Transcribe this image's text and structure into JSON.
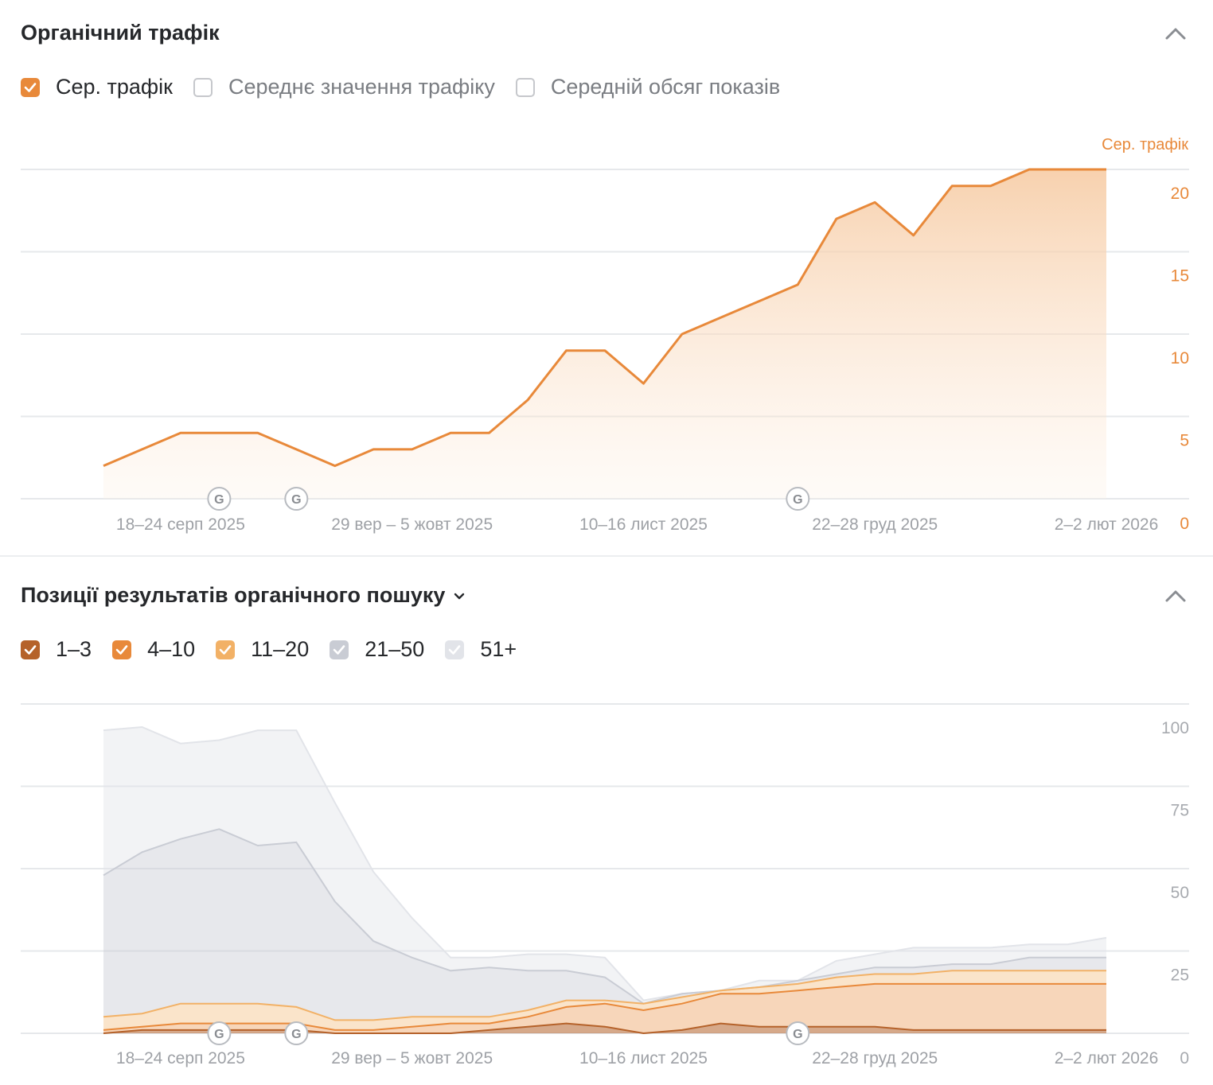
{
  "traffic_section": {
    "title": "Органічний трафік",
    "legend": [
      {
        "label": "Сер. трафік",
        "checked": true,
        "color": "#e8893a"
      },
      {
        "label": "Середнє значення трафіку",
        "checked": false
      },
      {
        "label": "Середній обсяг показів",
        "checked": false
      }
    ]
  },
  "positions_section": {
    "title": "Позиції результатів органічного пошуку",
    "legend": [
      {
        "label": "1–3",
        "checked": true,
        "color": "#b5622a"
      },
      {
        "label": "4–10",
        "checked": true,
        "color": "#e8893a"
      },
      {
        "label": "11–20",
        "checked": true,
        "color": "#f2b166"
      },
      {
        "label": "21–50",
        "checked": true,
        "color": "#c9ccd4"
      },
      {
        "label": "51+",
        "checked": true,
        "color": "#e2e4e9"
      }
    ]
  },
  "google_update_marker": "G",
  "chart_data": [
    {
      "type": "area",
      "y_axis_title": "Сер. трафік",
      "y_ticks": [
        "0",
        "5",
        "10",
        "15",
        "20"
      ],
      "ylim": [
        0,
        20
      ],
      "x_tick_labels": [
        "18–24 серп 2025",
        "29 вер – 5 жовт 2025",
        "10–16 лист 2025",
        "22–28 груд 2025",
        "2–2 лют 2026"
      ],
      "x_tick_index": [
        2,
        8,
        14,
        20,
        26
      ],
      "google_update_index": [
        3,
        5,
        18
      ],
      "grid": true,
      "series": [
        {
          "name": "Сер. трафік",
          "color": "#e8893a",
          "values": [
            2,
            3,
            4,
            4,
            4,
            3,
            2,
            3,
            3,
            4,
            4,
            6,
            9,
            9,
            7,
            10,
            11,
            12,
            13,
            17,
            18,
            16,
            19,
            19,
            20,
            20,
            20
          ]
        }
      ]
    },
    {
      "type": "area",
      "stacked": true,
      "y_ticks": [
        "0",
        "25",
        "50",
        "75",
        "100"
      ],
      "ylim": [
        0,
        100
      ],
      "x_tick_labels": [
        "18–24 серп 2025",
        "29 вер – 5 жовт 2025",
        "10–16 лист 2025",
        "22–28 груд 2025",
        "2–2 лют 2026"
      ],
      "x_tick_index": [
        2,
        8,
        14,
        20,
        26
      ],
      "google_update_index": [
        3,
        5,
        18
      ],
      "grid": true,
      "series": [
        {
          "name": "1–3",
          "color": "#b5622a",
          "values": [
            0,
            1,
            1,
            1,
            1,
            1,
            0,
            0,
            0,
            0,
            1,
            2,
            3,
            2,
            0,
            1,
            3,
            2,
            2,
            2,
            2,
            1,
            1,
            1,
            1,
            1,
            1
          ]
        },
        {
          "name": "4–10",
          "color": "#e8893a",
          "values": [
            1,
            1,
            2,
            2,
            2,
            2,
            1,
            1,
            2,
            3,
            2,
            3,
            5,
            7,
            7,
            8,
            9,
            10,
            11,
            12,
            13,
            14,
            14,
            14,
            14,
            14,
            14
          ]
        },
        {
          "name": "11–20",
          "color": "#f2b166",
          "values": [
            4,
            4,
            6,
            6,
            6,
            5,
            3,
            3,
            3,
            2,
            2,
            2,
            2,
            1,
            2,
            2,
            1,
            2,
            2,
            3,
            3,
            3,
            4,
            4,
            4,
            4,
            4
          ]
        },
        {
          "name": "21–50",
          "color": "#c9ccd4",
          "values": [
            43,
            49,
            50,
            53,
            48,
            50,
            36,
            24,
            18,
            14,
            15,
            12,
            9,
            7,
            0,
            1,
            0,
            0,
            1,
            1,
            2,
            2,
            2,
            2,
            4,
            4,
            4
          ]
        },
        {
          "name": "51+",
          "color": "#e2e4e9",
          "values": [
            44,
            38,
            29,
            27,
            35,
            34,
            30,
            21,
            12,
            4,
            3,
            5,
            5,
            6,
            1,
            0,
            0,
            2,
            0,
            4,
            4,
            6,
            5,
            5,
            4,
            4,
            6
          ]
        }
      ]
    }
  ]
}
